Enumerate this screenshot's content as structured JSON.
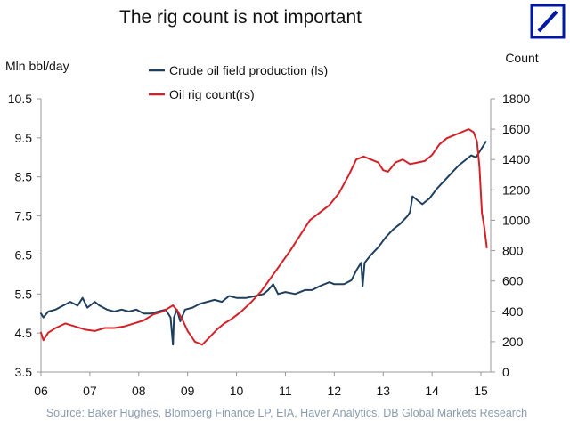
{
  "chart_data": {
    "type": "line",
    "title": "The rig count is not important",
    "ylabel_left": "Mln bbl/day",
    "ylabel_right": "Count",
    "x_tick_labels": [
      "06",
      "07",
      "08",
      "09",
      "10",
      "11",
      "12",
      "13",
      "14",
      "15"
    ],
    "x_ticks": [
      2006,
      2007,
      2008,
      2009,
      2010,
      2011,
      2012,
      2013,
      2014,
      2015
    ],
    "xlim": [
      2006,
      2015.2
    ],
    "y_left_ticks": [
      "3.5",
      "4.5",
      "5.5",
      "6.5",
      "7.5",
      "8.5",
      "9.5",
      "10.5"
    ],
    "y_left_values": [
      3.5,
      4.5,
      5.5,
      6.5,
      7.5,
      8.5,
      9.5,
      10.5
    ],
    "ylim_left": [
      3.5,
      10.5
    ],
    "y_right_ticks": [
      "0",
      "200",
      "400",
      "600",
      "800",
      "1000",
      "1200",
      "1400",
      "1600",
      "1800"
    ],
    "y_right_values": [
      0,
      200,
      400,
      600,
      800,
      1000,
      1200,
      1400,
      1600,
      1800
    ],
    "ylim_right": [
      0,
      1800
    ],
    "series": [
      {
        "name": "Crude oil field production (ls)",
        "axis": "left",
        "color": "#1f3f5f",
        "x": [
          2006.0,
          2006.05,
          2006.15,
          2006.3,
          2006.45,
          2006.6,
          2006.75,
          2006.85,
          2006.95,
          2007.1,
          2007.2,
          2007.35,
          2007.5,
          2007.65,
          2007.8,
          2007.95,
          2008.1,
          2008.25,
          2008.4,
          2008.55,
          2008.65,
          2008.7,
          2008.72,
          2008.78,
          2008.85,
          2008.95,
          2009.1,
          2009.25,
          2009.4,
          2009.55,
          2009.7,
          2009.85,
          2010.0,
          2010.2,
          2010.4,
          2010.55,
          2010.65,
          2010.75,
          2010.85,
          2011.0,
          2011.2,
          2011.4,
          2011.55,
          2011.7,
          2011.9,
          2012.0,
          2012.2,
          2012.35,
          2012.45,
          2012.55,
          2012.58,
          2012.62,
          2012.75,
          2012.9,
          2013.05,
          2013.2,
          2013.35,
          2013.5,
          2013.55,
          2013.6,
          2013.8,
          2013.95,
          2014.1,
          2014.25,
          2014.4,
          2014.55,
          2014.7,
          2014.8,
          2014.9,
          2015.0,
          2015.1
        ],
        "values": [
          5.0,
          4.9,
          5.05,
          5.1,
          5.2,
          5.3,
          5.2,
          5.4,
          5.15,
          5.3,
          5.2,
          5.1,
          5.05,
          5.1,
          5.05,
          5.1,
          5.0,
          5.0,
          5.05,
          5.1,
          4.9,
          4.2,
          4.9,
          5.1,
          4.8,
          5.1,
          5.15,
          5.25,
          5.3,
          5.35,
          5.3,
          5.45,
          5.4,
          5.4,
          5.45,
          5.5,
          5.6,
          5.75,
          5.5,
          5.55,
          5.5,
          5.6,
          5.6,
          5.7,
          5.8,
          5.75,
          5.75,
          5.85,
          6.1,
          6.3,
          5.7,
          6.3,
          6.5,
          6.7,
          6.95,
          7.15,
          7.3,
          7.5,
          7.6,
          8.0,
          7.8,
          7.95,
          8.2,
          8.4,
          8.6,
          8.8,
          8.95,
          9.05,
          9.0,
          9.2,
          9.4
        ]
      },
      {
        "name": "Oil rig count(rs)",
        "axis": "right",
        "color": "#d42127",
        "x": [
          2006.0,
          2006.05,
          2006.15,
          2006.3,
          2006.5,
          2006.7,
          2006.9,
          2007.1,
          2007.3,
          2007.5,
          2007.7,
          2007.9,
          2008.1,
          2008.3,
          2008.5,
          2008.7,
          2008.8,
          2008.9,
          2009.0,
          2009.15,
          2009.3,
          2009.45,
          2009.6,
          2009.75,
          2009.9,
          2010.1,
          2010.3,
          2010.5,
          2010.7,
          2010.9,
          2011.1,
          2011.3,
          2011.5,
          2011.7,
          2011.9,
          2012.1,
          2012.3,
          2012.45,
          2012.6,
          2012.75,
          2012.9,
          2013.0,
          2013.1,
          2013.25,
          2013.4,
          2013.55,
          2013.7,
          2013.85,
          2014.0,
          2014.15,
          2014.3,
          2014.45,
          2014.6,
          2014.75,
          2014.85,
          2014.92,
          2014.97,
          2015.02,
          2015.07,
          2015.12
        ],
        "values": [
          260,
          210,
          260,
          290,
          320,
          300,
          280,
          270,
          290,
          290,
          300,
          320,
          340,
          380,
          400,
          440,
          400,
          340,
          270,
          200,
          180,
          230,
          280,
          320,
          350,
          400,
          460,
          530,
          620,
          710,
          800,
          900,
          1000,
          1050,
          1100,
          1180,
          1300,
          1400,
          1420,
          1400,
          1380,
          1330,
          1320,
          1380,
          1400,
          1370,
          1380,
          1390,
          1430,
          1500,
          1540,
          1560,
          1580,
          1600,
          1580,
          1520,
          1350,
          1050,
          950,
          820
        ]
      }
    ],
    "legend": [
      "Crude oil field production (ls)",
      "Oil rig count(rs)"
    ],
    "legend_position": "top-left",
    "source": "Source: Baker Hughes, Blomberg Finance LP, EIA, Haver Analytics, DB Global Markets Research"
  },
  "logo": {
    "name": "deutsche-bank-logo",
    "color": "#0018a8"
  }
}
